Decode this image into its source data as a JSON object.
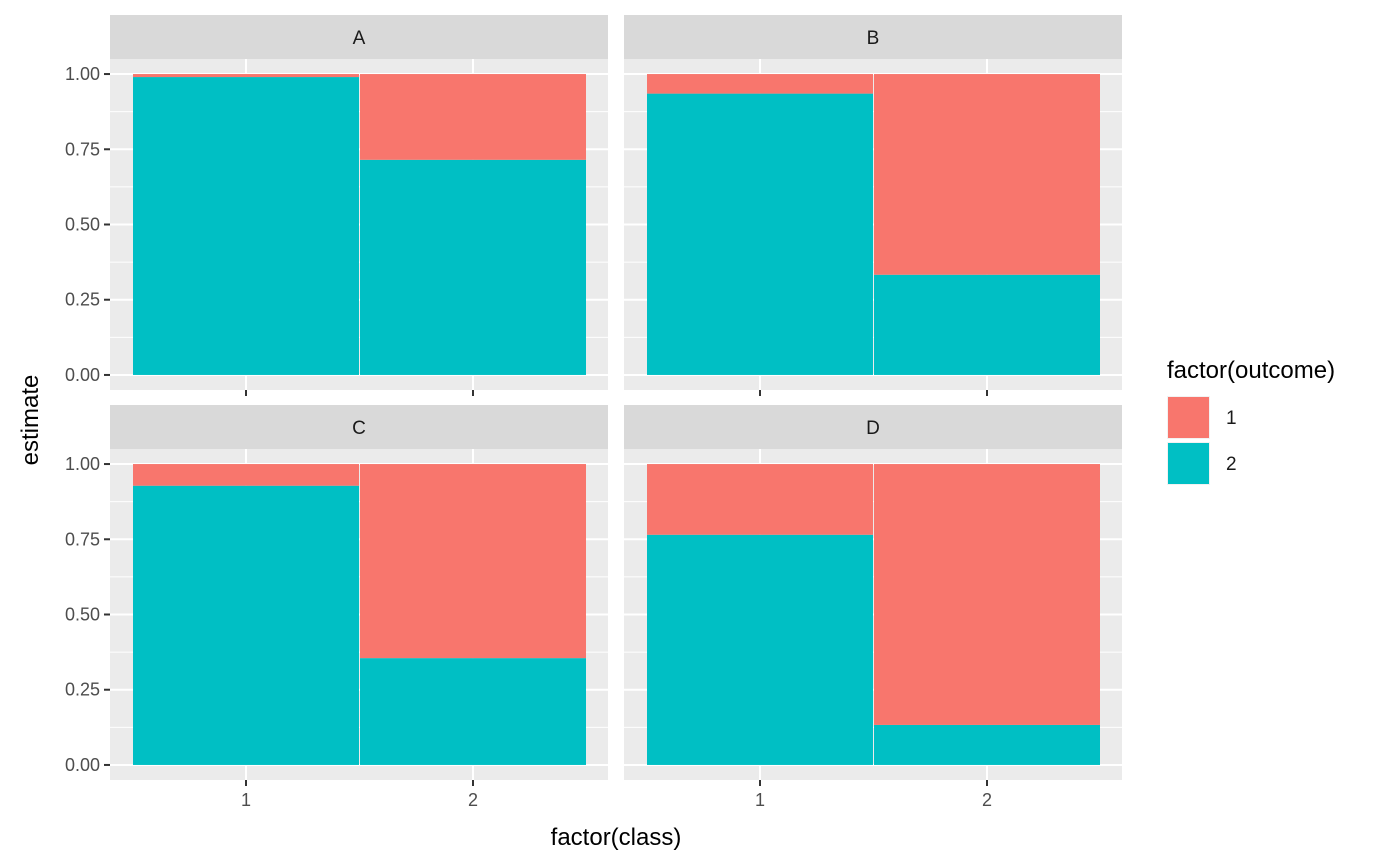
{
  "chart_data": {
    "type": "bar",
    "subtype": "stacked-proportion-facets",
    "xlabel": "factor(class)",
    "ylabel": "estimate",
    "ylim": [
      0,
      1
    ],
    "y_ticks": [
      "0.00",
      "0.25",
      "0.50",
      "0.75",
      "1.00"
    ],
    "categories": [
      "1",
      "2"
    ],
    "legend": {
      "title": "factor(outcome)",
      "position": "right",
      "entries": [
        {
          "label": "1",
          "color": "#F8766D"
        },
        {
          "label": "2",
          "color": "#00BFC4"
        }
      ]
    },
    "panel_background": "#EBEBEB",
    "strip_background": "#D9D9D9",
    "grid": true,
    "facets": [
      {
        "label": "A",
        "series": [
          {
            "name": "1",
            "values": [
              0.01,
              0.285
            ]
          },
          {
            "name": "2",
            "values": [
              0.99,
              0.715
            ]
          }
        ]
      },
      {
        "label": "B",
        "series": [
          {
            "name": "1",
            "values": [
              0.065,
              0.667
            ]
          },
          {
            "name": "2",
            "values": [
              0.935,
              0.333
            ]
          }
        ]
      },
      {
        "label": "C",
        "series": [
          {
            "name": "1",
            "values": [
              0.072,
              0.645
            ]
          },
          {
            "name": "2",
            "values": [
              0.928,
              0.355
            ]
          }
        ]
      },
      {
        "label": "D",
        "series": [
          {
            "name": "1",
            "values": [
              0.235,
              0.867
            ]
          },
          {
            "name": "2",
            "values": [
              0.765,
              0.133
            ]
          }
        ]
      }
    ]
  }
}
